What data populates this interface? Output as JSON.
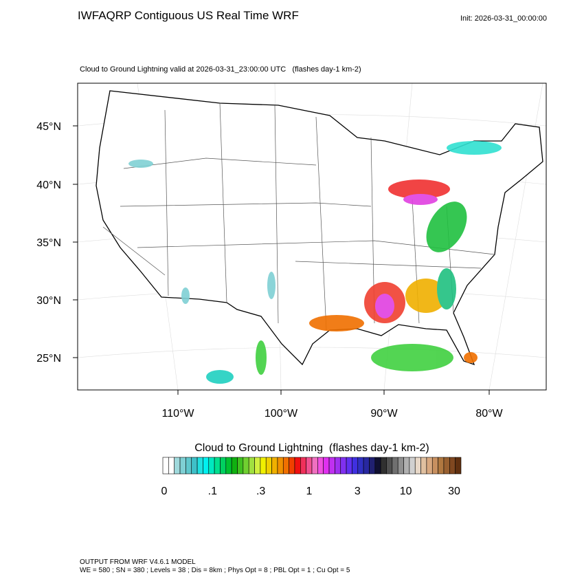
{
  "header": {
    "title": "IWFAQRP Contiguous US Real Time WRF",
    "init": "Init: 2026-03-31_00:00:00"
  },
  "map": {
    "subtitle": "Cloud to Ground Lightning valid at 2026-03-31_23:00:00 UTC   (flashes day-1 km-2)",
    "lat_labels": [
      "45°N",
      "40°N",
      "35°N",
      "30°N",
      "25°N"
    ],
    "lon_labels": [
      "110°W",
      "100°W",
      "90°W",
      "80°W"
    ]
  },
  "colorbar": {
    "title": "Cloud to Ground Lightning  (flashes day-1 km-2)",
    "labels": [
      "0",
      ".1",
      ".3",
      "1",
      "3",
      "10",
      "30"
    ],
    "colors": [
      "#ffffff",
      "#ffffff",
      "#9fd9dc",
      "#7fd0d4",
      "#5fc7cc",
      "#3fc0c8",
      "#20e0e0",
      "#00f0f0",
      "#00e8c0",
      "#00e090",
      "#00d060",
      "#00c030",
      "#10b010",
      "#40c020",
      "#70d030",
      "#a0e040",
      "#d0f040",
      "#f0f000",
      "#f0d000",
      "#f0b000",
      "#f09000",
      "#f07000",
      "#f04000",
      "#f01010",
      "#f0305a",
      "#f05090",
      "#f070c0",
      "#f050e0",
      "#e030f0",
      "#c030f0",
      "#a030f0",
      "#8030f0",
      "#6030f0",
      "#4030e0",
      "#3030c0",
      "#2828a0",
      "#202070",
      "#101030",
      "#303030",
      "#505050",
      "#707070",
      "#909090",
      "#b0b0b0",
      "#d0d0d0",
      "#e8d8c8",
      "#e0c0a0",
      "#d8a880",
      "#c89060",
      "#b07840",
      "#986030",
      "#804820",
      "#603010"
    ]
  },
  "footer": {
    "line1": "OUTPUT FROM WRF V4.6.1 MODEL",
    "line2": "WE = 580 ; SN = 380 ; Levels = 38 ; Dis = 8km ; Phys Opt = 8 ; PBL Opt = 1 ; Cu Opt = 5"
  }
}
